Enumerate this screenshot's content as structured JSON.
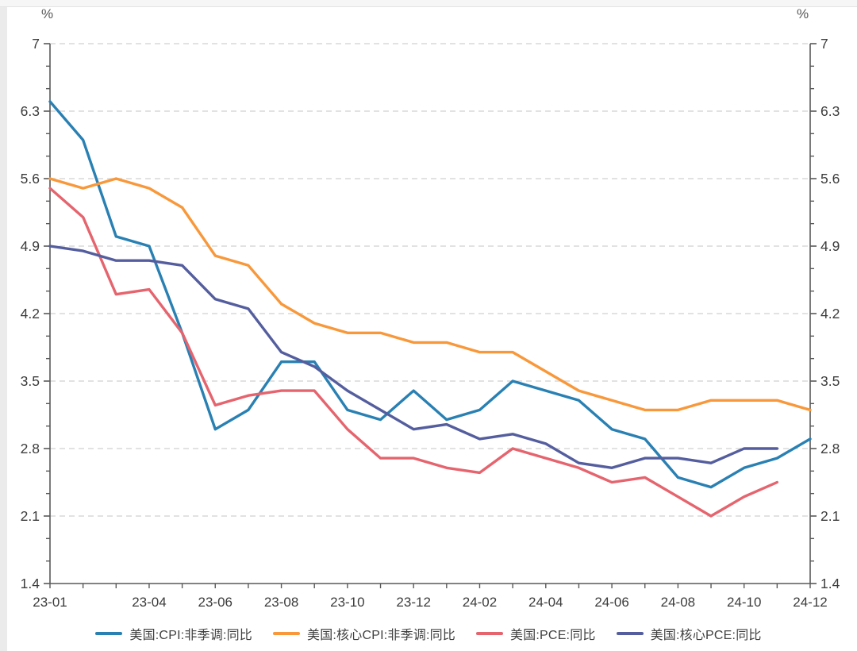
{
  "chart_data": {
    "type": "line",
    "title": "",
    "unit_label": "%",
    "xlabel": "",
    "ylabel": "%",
    "grid": "horizontal-dashed",
    "legend_position": "bottom",
    "y_axis": {
      "min": 1.4,
      "max": 7,
      "major_step": 0.7,
      "minor_divisions": 3,
      "tick_labels": [
        "7",
        "6.3",
        "5.6",
        "4.9",
        "4.2",
        "3.5",
        "2.8",
        "2.1",
        "1.4"
      ],
      "mirrored_right": true
    },
    "categories": [
      "23-01",
      "23-02",
      "23-03",
      "23-04",
      "23-05",
      "23-06",
      "23-07",
      "23-08",
      "23-09",
      "23-10",
      "23-11",
      "23-12",
      "24-01",
      "24-02",
      "24-03",
      "24-04",
      "24-05",
      "24-06",
      "24-07",
      "24-08",
      "24-09",
      "24-10",
      "24-11",
      "24-12"
    ],
    "x_tick_labels": [
      "23-01",
      "23-04",
      "23-06",
      "23-08",
      "23-10",
      "23-12",
      "24-02",
      "24-04",
      "24-06",
      "24-08",
      "24-10",
      "24-12"
    ],
    "x_tick_label_month_indices": [
      0,
      3,
      5,
      7,
      9,
      11,
      13,
      15,
      17,
      19,
      21,
      23
    ],
    "series": [
      {
        "name": "美国:CPI:非季调:同比",
        "color": "#2980B3",
        "values": [
          6.4,
          6.0,
          5.0,
          4.9,
          4.0,
          3.0,
          3.2,
          3.7,
          3.7,
          3.2,
          3.1,
          3.4,
          3.1,
          3.2,
          3.5,
          3.4,
          3.3,
          3.0,
          2.9,
          2.5,
          2.4,
          2.6,
          2.7,
          2.9
        ]
      },
      {
        "name": "美国:核心CPI:非季调:同比",
        "color": "#F8983A",
        "values": [
          5.6,
          5.5,
          5.6,
          5.5,
          5.3,
          4.8,
          4.7,
          4.3,
          4.1,
          4.0,
          4.0,
          3.9,
          3.9,
          3.8,
          3.8,
          3.6,
          3.4,
          3.3,
          3.2,
          3.2,
          3.3,
          3.3,
          3.3,
          3.2
        ]
      },
      {
        "name": "美国:PCE:同比",
        "color": "#E5646E",
        "values": [
          5.5,
          5.2,
          4.4,
          4.45,
          4.0,
          3.25,
          3.35,
          3.4,
          3.4,
          3.0,
          2.7,
          2.7,
          2.6,
          2.55,
          2.8,
          2.7,
          2.6,
          2.45,
          2.5,
          2.3,
          2.1,
          2.3,
          2.45,
          null
        ]
      },
      {
        "name": "美国:核心PCE:同比",
        "color": "#545E9E",
        "values": [
          4.9,
          4.85,
          4.75,
          4.75,
          4.7,
          4.35,
          4.25,
          3.8,
          3.65,
          3.4,
          3.2,
          3.0,
          3.05,
          2.9,
          2.95,
          2.85,
          2.65,
          2.6,
          2.7,
          2.7,
          2.65,
          2.8,
          2.8,
          null
        ]
      }
    ],
    "style": {
      "axis_color": "#595959",
      "grid_color": "#d9d9d9",
      "tick_label_color": "#3c3c3c",
      "line_width": 3.4
    }
  }
}
